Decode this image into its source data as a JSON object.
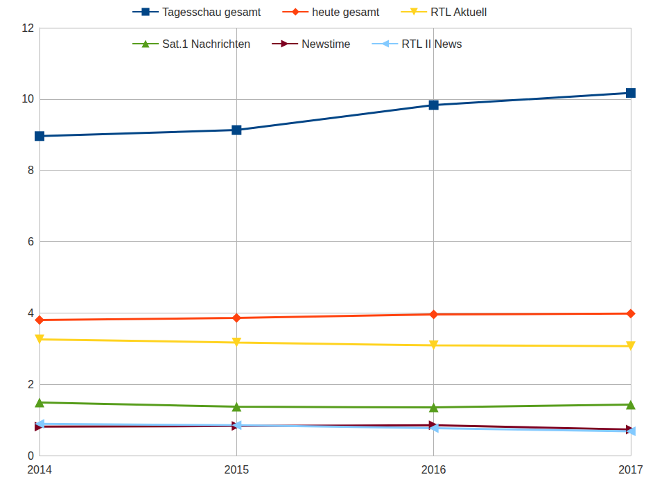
{
  "chart_data": {
    "type": "line",
    "categories": [
      "2014",
      "2015",
      "2016",
      "2017"
    ],
    "series": [
      {
        "name": "Tagesschau gesamt",
        "color": "#004586",
        "marker": "square",
        "values": [
          8.96,
          9.13,
          9.83,
          10.17
        ]
      },
      {
        "name": "heute gesamt",
        "color": "#ff420e",
        "marker": "diamond",
        "values": [
          3.8,
          3.86,
          3.96,
          3.98
        ]
      },
      {
        "name": "RTL Aktuell",
        "color": "#ffd320",
        "marker": "triangle-down",
        "values": [
          3.26,
          3.17,
          3.09,
          3.07
        ]
      },
      {
        "name": "Sat.1 Nachrichten",
        "color": "#579d1c",
        "marker": "triangle",
        "values": [
          1.49,
          1.37,
          1.35,
          1.43
        ]
      },
      {
        "name": "Newstime",
        "color": "#7e0021",
        "marker": "triangle-right",
        "values": [
          0.81,
          0.83,
          0.85,
          0.73
        ]
      },
      {
        "name": "RTL II News",
        "color": "#83caff",
        "marker": "triangle-left",
        "values": [
          0.89,
          0.85,
          0.77,
          0.68
        ]
      }
    ],
    "ylim": [
      0,
      12
    ],
    "yticks": [
      0,
      2,
      4,
      6,
      8,
      10,
      12
    ],
    "grid": true,
    "legend": "top"
  }
}
